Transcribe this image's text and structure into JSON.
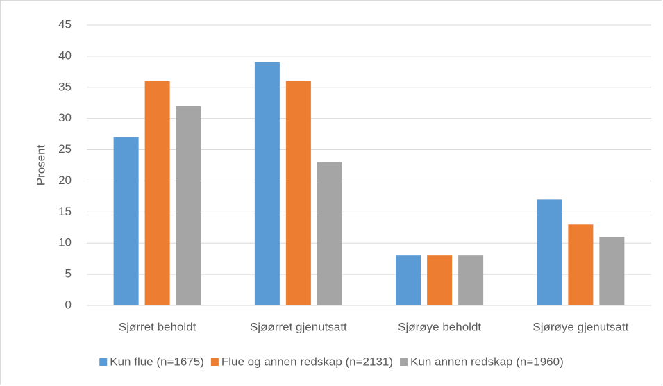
{
  "chart_data": {
    "type": "bar",
    "categories": [
      "Sjørret beholdt",
      "Sjøørret gjenutsatt",
      "Sjørøye beholdt",
      "Sjørøye gjenutsatt"
    ],
    "series": [
      {
        "name": "Kun flue (n=1675)",
        "color": "#5b9bd5",
        "values": [
          27,
          39,
          8,
          17
        ]
      },
      {
        "name": "Flue og annen redskap (n=2131)",
        "color": "#ed7d31",
        "values": [
          36,
          36,
          8,
          13
        ]
      },
      {
        "name": "Kun annen redskap (n=1960)",
        "color": "#a5a5a5",
        "values": [
          32,
          23,
          8,
          11
        ]
      }
    ],
    "y_label": "Prosent",
    "ylim": [
      0,
      45
    ],
    "yticks": [
      0,
      5,
      10,
      15,
      20,
      25,
      30,
      35,
      40,
      45
    ],
    "grid": true,
    "legend": "bottom"
  }
}
